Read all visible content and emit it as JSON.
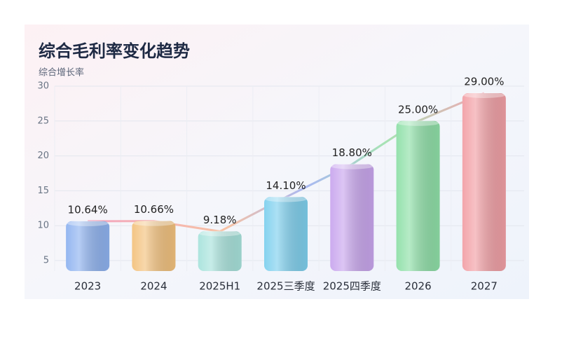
{
  "chart_data": {
    "type": "bar",
    "title": "综合毛利率变化趋势",
    "y_label": "综合增长率",
    "categories": [
      "2023",
      "2024",
      "2025H1",
      "2025三季度",
      "2025四季度",
      "2026",
      "2027"
    ],
    "values": [
      10.64,
      10.66,
      9.18,
      14.1,
      18.8,
      25,
      29
    ],
    "value_labels": [
      "10.64%",
      "10.66%",
      "9.18%",
      "14.10%",
      "18.80%",
      "25.00%",
      "29.00%"
    ],
    "colors": [
      "#8fb3f0",
      "#f3c27e",
      "#a8e3dc",
      "#7fd0ee",
      "#c9a6ee",
      "#8fe0a8",
      "#f2a0a6"
    ],
    "ylim": [
      3.5,
      30
    ],
    "yticks": [
      5,
      10,
      15,
      20,
      25,
      30
    ],
    "grid": true
  }
}
